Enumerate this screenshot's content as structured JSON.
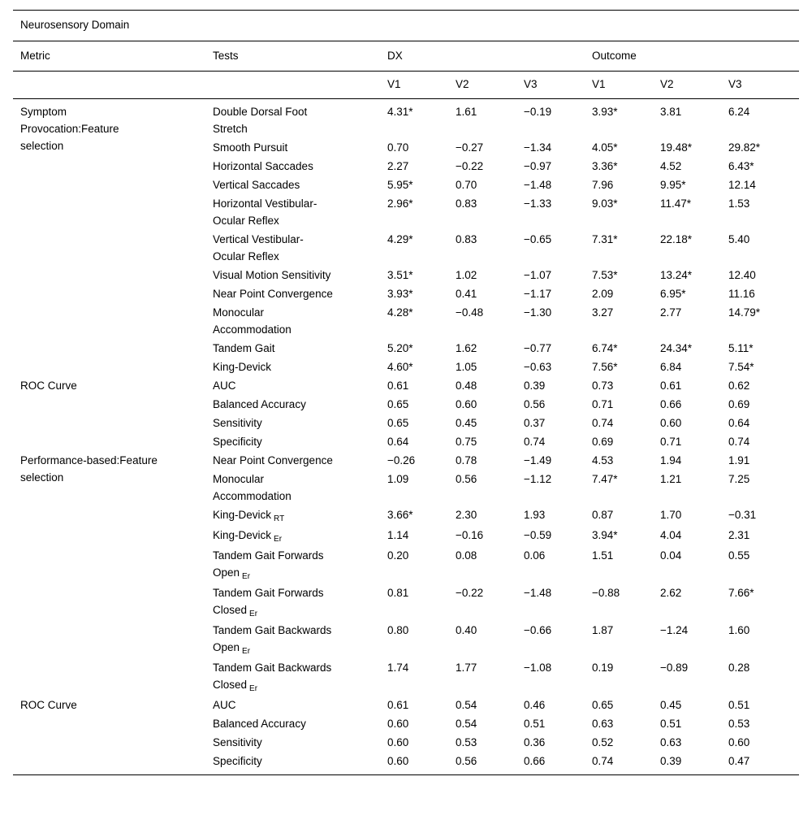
{
  "page": {
    "background": "#ffffff",
    "text_color": "#000000"
  },
  "table": {
    "title": "Neurosensory Domain",
    "headers": {
      "metric": "Metric",
      "tests": "Tests",
      "group_dx": "DX",
      "group_outcome": "Outcome",
      "visits": [
        "V1",
        "V2",
        "V3"
      ]
    },
    "significance_marker": "*",
    "rows": [
      {
        "metric": "Symptom Provocation:Feature selection",
        "test": "Double Dorsal Foot Stretch",
        "sub": "",
        "values": [
          "4.31*",
          "1.61",
          "−0.19",
          "3.93*",
          "3.81",
          "6.24"
        ]
      },
      {
        "metric": "",
        "test": "Smooth Pursuit",
        "sub": "",
        "values": [
          "0.70",
          "−0.27",
          "−1.34",
          "4.05*",
          "19.48*",
          "29.82*"
        ]
      },
      {
        "metric": "",
        "test": "Horizontal Saccades",
        "sub": "",
        "values": [
          "2.27",
          "−0.22",
          "−0.97",
          "3.36*",
          "4.52",
          "6.43*"
        ]
      },
      {
        "metric": "",
        "test": "Vertical Saccades",
        "sub": "",
        "values": [
          "5.95*",
          "0.70",
          "−1.48",
          "7.96",
          "9.95*",
          "12.14"
        ]
      },
      {
        "metric": "",
        "test": "Horizontal Vestibular-Ocular Reflex",
        "sub": "",
        "values": [
          "2.96*",
          "0.83",
          "−1.33",
          "9.03*",
          "11.47*",
          "1.53"
        ]
      },
      {
        "metric": "",
        "test": "Vertical Vestibular-Ocular Reflex",
        "sub": "",
        "values": [
          "4.29*",
          "0.83",
          "−0.65",
          "7.31*",
          "22.18*",
          "5.40"
        ]
      },
      {
        "metric": "",
        "test": "Visual Motion Sensitivity",
        "sub": "",
        "values": [
          "3.51*",
          "1.02",
          "−1.07",
          "7.53*",
          "13.24*",
          "12.40"
        ]
      },
      {
        "metric": "",
        "test": "Near Point Convergence",
        "sub": "",
        "values": [
          "3.93*",
          "0.41",
          "−1.17",
          "2.09",
          "6.95*",
          "11.16"
        ]
      },
      {
        "metric": "",
        "test": "Monocular Accommodation",
        "sub": "",
        "values": [
          "4.28*",
          "−0.48",
          "−1.30",
          "3.27",
          "2.77",
          "14.79*"
        ]
      },
      {
        "metric": "",
        "test": "Tandem Gait",
        "sub": "",
        "values": [
          "5.20*",
          "1.62",
          "−0.77",
          "6.74*",
          "24.34*",
          "5.11*"
        ]
      },
      {
        "metric": "",
        "test": "King-Devick",
        "sub": "",
        "values": [
          "4.60*",
          "1.05",
          "−0.63",
          "7.56*",
          "6.84",
          "7.54*"
        ]
      },
      {
        "metric": "ROC Curve",
        "test": "AUC",
        "sub": "",
        "values": [
          "0.61",
          "0.48",
          "0.39",
          "0.73",
          "0.61",
          "0.62"
        ]
      },
      {
        "metric": "",
        "test": "Balanced Accuracy",
        "sub": "",
        "values": [
          "0.65",
          "0.60",
          "0.56",
          "0.71",
          "0.66",
          "0.69"
        ]
      },
      {
        "metric": "",
        "test": "Sensitivity",
        "sub": "",
        "values": [
          "0.65",
          "0.45",
          "0.37",
          "0.74",
          "0.60",
          "0.64"
        ]
      },
      {
        "metric": "",
        "test": "Specificity",
        "sub": "",
        "values": [
          "0.64",
          "0.75",
          "0.74",
          "0.69",
          "0.71",
          "0.74"
        ]
      },
      {
        "metric": "Performance-based:Feature selection",
        "test": "Near Point Convergence",
        "sub": "",
        "values": [
          "−0.26",
          "0.78",
          "−1.49",
          "4.53",
          "1.94",
          "1.91"
        ]
      },
      {
        "metric": "",
        "test": "Monocular Accommodation",
        "sub": "",
        "values": [
          "1.09",
          "0.56",
          "−1.12",
          "7.47*",
          "1.21",
          "7.25"
        ]
      },
      {
        "metric": "",
        "test": "King-Devick",
        "sub": "RT",
        "values": [
          "3.66*",
          "2.30",
          "1.93",
          "0.87",
          "1.70",
          "−0.31"
        ]
      },
      {
        "metric": "",
        "test": "King-Devick",
        "sub": "Er",
        "values": [
          "1.14",
          "−0.16",
          "−0.59",
          "3.94*",
          "4.04",
          "2.31"
        ]
      },
      {
        "metric": "",
        "test": "Tandem Gait Forwards Open",
        "sub": "Er",
        "values": [
          "0.20",
          "0.08",
          "0.06",
          "1.51",
          "0.04",
          "0.55"
        ]
      },
      {
        "metric": "",
        "test": "Tandem Gait Forwards Closed",
        "sub": "Er",
        "values": [
          "0.81",
          "−0.22",
          "−1.48",
          "−0.88",
          "2.62",
          "7.66*"
        ]
      },
      {
        "metric": "",
        "test": "Tandem Gait Backwards Open",
        "sub": "Er",
        "values": [
          "0.80",
          "0.40",
          "−0.66",
          "1.87",
          "−1.24",
          "1.60"
        ]
      },
      {
        "metric": "",
        "test": "Tandem Gait Backwards Closed",
        "sub": "Er",
        "values": [
          "1.74",
          "1.77",
          "−1.08",
          "0.19",
          "−0.89",
          "0.28"
        ]
      },
      {
        "metric": "ROC Curve",
        "test": "AUC",
        "sub": "",
        "values": [
          "0.61",
          "0.54",
          "0.46",
          "0.65",
          "0.45",
          "0.51"
        ]
      },
      {
        "metric": "",
        "test": "Balanced Accuracy",
        "sub": "",
        "values": [
          "0.60",
          "0.54",
          "0.51",
          "0.63",
          "0.51",
          "0.53"
        ]
      },
      {
        "metric": "",
        "test": "Sensitivity",
        "sub": "",
        "values": [
          "0.60",
          "0.53",
          "0.36",
          "0.52",
          "0.63",
          "0.60"
        ]
      },
      {
        "metric": "",
        "test": "Specificity",
        "sub": "",
        "values": [
          "0.60",
          "0.56",
          "0.66",
          "0.74",
          "0.39",
          "0.47"
        ]
      }
    ]
  }
}
